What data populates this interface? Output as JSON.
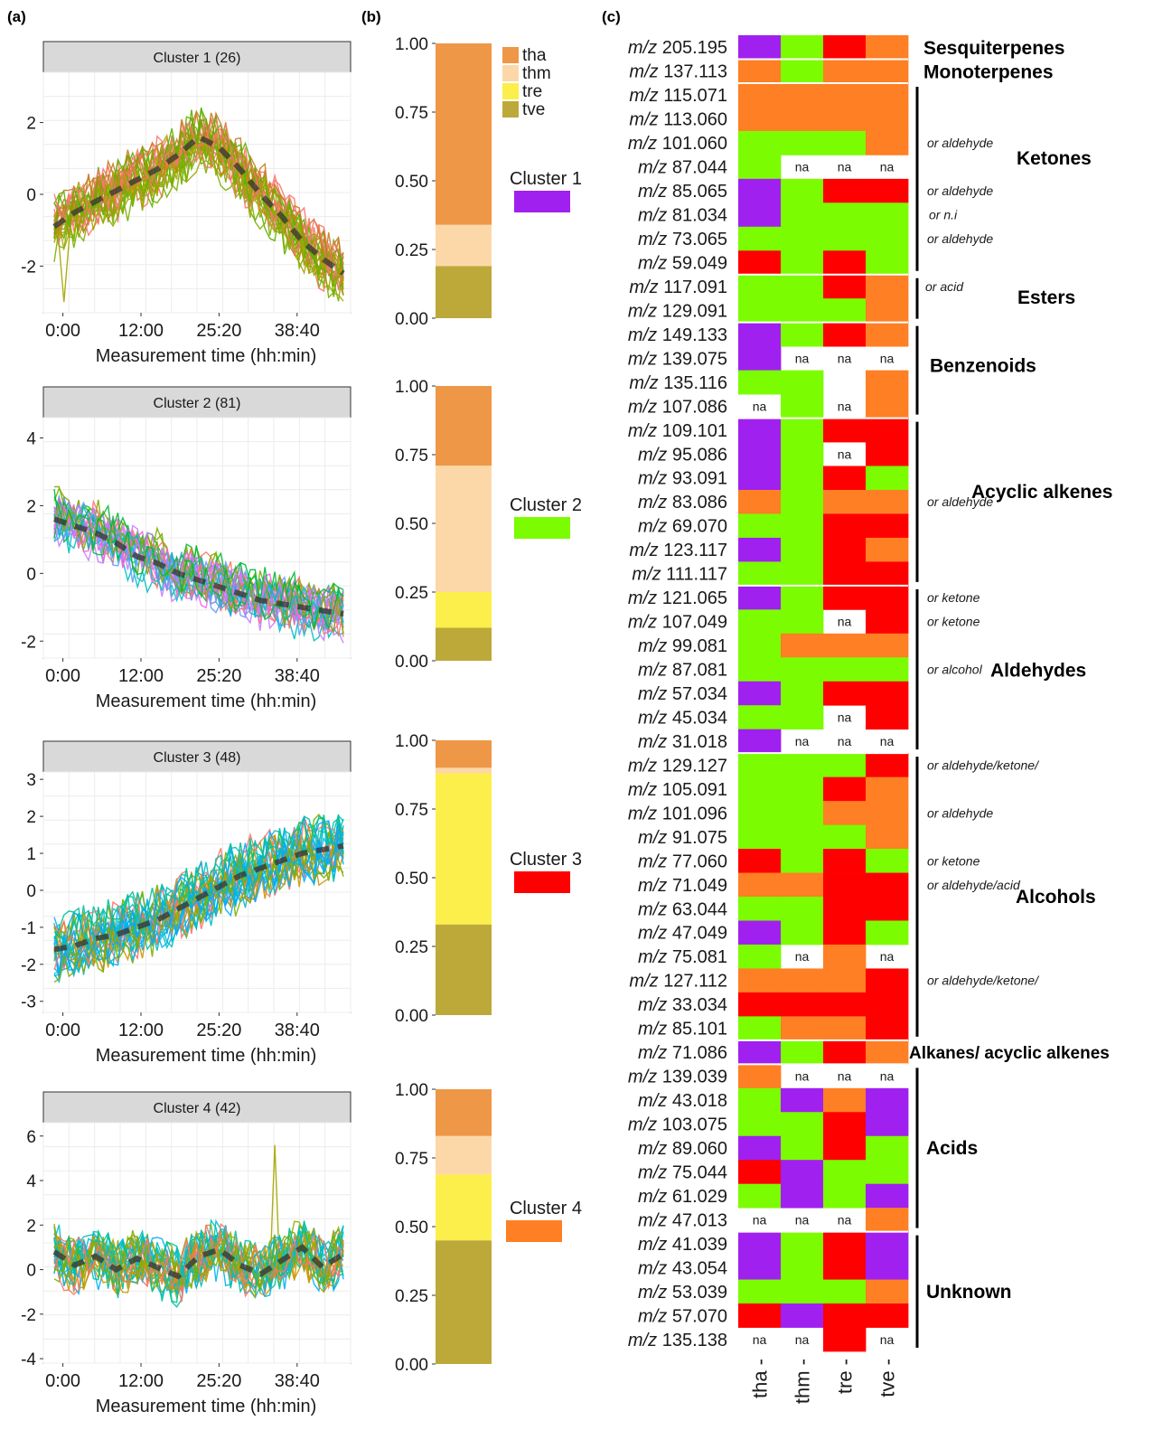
{
  "panel_labels": {
    "a": "(a)",
    "b": "(b)",
    "c": "(c)"
  },
  "chart_data": [
    {
      "panel": "a",
      "type": "line",
      "title": "Cluster 1 (26)",
      "xlabel": "Measurement time (hh:min)",
      "x_ticks": [
        "0:00",
        "12:00",
        "25:20",
        "38:40"
      ],
      "ylim": [
        -3.3,
        3.4
      ],
      "y_ticks": [
        2,
        0,
        -2
      ],
      "series_colors": [
        "#f8766d",
        "#7cae00",
        "#a3a500",
        "#c77c1e",
        "#5bb300"
      ],
      "mean_profile": [
        -0.9,
        -0.5,
        -0.2,
        0.1,
        0.4,
        0.7,
        1.1,
        1.6,
        1.3,
        0.7,
        0.0,
        -0.6,
        -1.3,
        -1.8,
        -2.2
      ]
    },
    {
      "panel": "a",
      "type": "line",
      "title": "Cluster 2 (81)",
      "xlabel": "Measurement time (hh:min)",
      "x_ticks": [
        "0:00",
        "12:00",
        "25:20",
        "38:40"
      ],
      "ylim": [
        -2.5,
        4.6
      ],
      "y_ticks": [
        4,
        2,
        0,
        -2
      ],
      "series_colors": [
        "#f564e3",
        "#c77cff",
        "#00bfc4",
        "#7cae00",
        "#00ba38",
        "#f8766d",
        "#619cff"
      ],
      "mean_profile": [
        1.6,
        1.4,
        1.2,
        0.9,
        0.5,
        0.3,
        0.0,
        -0.2,
        -0.4,
        -0.6,
        -0.8,
        -0.9,
        -1.0,
        -1.1,
        -1.2
      ]
    },
    {
      "panel": "a",
      "type": "line",
      "title": "Cluster 3 (48)",
      "xlabel": "Measurement time (hh:min)",
      "x_ticks": [
        "0:00",
        "12:00",
        "25:20",
        "38:40"
      ],
      "ylim": [
        -3.3,
        3.2
      ],
      "y_ticks": [
        3,
        2,
        1,
        0,
        -1,
        -2,
        -3
      ],
      "series_colors": [
        "#00bfc4",
        "#cd9600",
        "#00b0f6",
        "#00a9ff",
        "#7cae00",
        "#f8766d",
        "#00c19a"
      ],
      "mean_profile": [
        -1.6,
        -1.5,
        -1.3,
        -1.2,
        -1.0,
        -0.8,
        -0.5,
        -0.2,
        0.1,
        0.4,
        0.6,
        0.8,
        1.0,
        1.1,
        1.2
      ]
    },
    {
      "panel": "a",
      "type": "line",
      "title": "Cluster 4 (42)",
      "xlabel": "Measurement time (hh:min)",
      "x_ticks": [
        "0:00",
        "12:00",
        "25:20",
        "38:40"
      ],
      "ylim": [
        -4.2,
        6.6
      ],
      "y_ticks": [
        6,
        4,
        2,
        0,
        -2,
        -4
      ],
      "series_colors": [
        "#00bfc4",
        "#7cae00",
        "#00c19a",
        "#a3a500",
        "#f8766d",
        "#00b0f6",
        "#cd9600"
      ],
      "mean_profile": [
        0.8,
        0.2,
        0.6,
        0.0,
        0.5,
        0.1,
        -0.3,
        0.6,
        0.9,
        0.2,
        -0.2,
        0.4,
        1.0,
        0.1,
        0.7
      ]
    },
    {
      "panel": "b",
      "type": "bar",
      "y_ticks": [
        "1.00",
        "0.75",
        "0.50",
        "0.25",
        "0.00"
      ],
      "legend": [
        {
          "name": "tha",
          "color": "#ee9747"
        },
        {
          "name": "thm",
          "color": "#fcd8a8"
        },
        {
          "name": "tre",
          "color": "#fcee4b"
        },
        {
          "name": "tve",
          "color": "#bca93a"
        }
      ],
      "bars": [
        {
          "label": "Cluster 1",
          "color": "#a020f0",
          "tha": 0.66,
          "thm": 0.15,
          "tre": 0.0,
          "tve": 0.19
        },
        {
          "label": "Cluster 2",
          "color": "#7cfc00",
          "tha": 0.29,
          "thm": 0.46,
          "tre": 0.13,
          "tve": 0.12
        },
        {
          "label": "Cluster 3",
          "color": "#ff0000",
          "tha": 0.1,
          "thm": 0.02,
          "tre": 0.55,
          "tve": 0.33
        },
        {
          "label": "Cluster 4",
          "color": "#ff7f24",
          "tha": 0.17,
          "thm": 0.14,
          "tre": 0.24,
          "tve": 0.45
        }
      ]
    },
    {
      "panel": "c",
      "type": "heatmap",
      "x_labels": [
        "tha -",
        "thm -",
        "tre -",
        "tve -"
      ],
      "na_label": "na",
      "mz_prefix": "m/z",
      "cluster_colors": {
        "1": "#a020f0",
        "2": "#7cfc00",
        "3": "#ff0000",
        "4": "#ff7f24"
      },
      "rows": [
        {
          "mz": "205.195",
          "cells": [
            1,
            2,
            3,
            4
          ]
        },
        {
          "mz": "137.113",
          "cells": [
            4,
            2,
            4,
            4
          ]
        },
        {
          "mz": "115.071",
          "cells": [
            4,
            4,
            4,
            4
          ]
        },
        {
          "mz": "113.060",
          "cells": [
            4,
            4,
            4,
            4
          ]
        },
        {
          "mz": "101.060",
          "cells": [
            2,
            2,
            2,
            4
          ]
        },
        {
          "mz": "87.044",
          "cells": [
            2,
            0,
            0,
            0
          ]
        },
        {
          "mz": "85.065",
          "cells": [
            1,
            2,
            3,
            3
          ]
        },
        {
          "mz": "81.034",
          "cells": [
            1,
            2,
            2,
            2
          ]
        },
        {
          "mz": "73.065",
          "cells": [
            2,
            2,
            2,
            2
          ]
        },
        {
          "mz": "59.049",
          "cells": [
            3,
            2,
            3,
            2
          ]
        },
        {
          "mz": "117.091",
          "cells": [
            2,
            2,
            3,
            4
          ]
        },
        {
          "mz": "129.091",
          "cells": [
            2,
            2,
            2,
            4
          ]
        },
        {
          "mz": "149.133",
          "cells": [
            1,
            2,
            3,
            4
          ]
        },
        {
          "mz": "139.075",
          "cells": [
            1,
            0,
            0,
            0
          ]
        },
        {
          "mz": "135.116",
          "cells": [
            2,
            2,
            5,
            4
          ]
        },
        {
          "mz": "107.086",
          "cells": [
            0,
            2,
            0,
            4
          ]
        },
        {
          "mz": "109.101",
          "cells": [
            1,
            2,
            3,
            3
          ]
        },
        {
          "mz": "95.086",
          "cells": [
            1,
            2,
            0,
            3
          ]
        },
        {
          "mz": "93.091",
          "cells": [
            1,
            2,
            3,
            2
          ]
        },
        {
          "mz": "83.086",
          "cells": [
            4,
            2,
            4,
            4
          ]
        },
        {
          "mz": "69.070",
          "cells": [
            2,
            2,
            3,
            3
          ]
        },
        {
          "mz": "123.117",
          "cells": [
            1,
            2,
            3,
            4
          ]
        },
        {
          "mz": "111.117",
          "cells": [
            2,
            2,
            3,
            3
          ]
        },
        {
          "mz": "121.065",
          "cells": [
            1,
            2,
            3,
            3
          ]
        },
        {
          "mz": "107.049",
          "cells": [
            2,
            2,
            0,
            3
          ]
        },
        {
          "mz": "99.081",
          "cells": [
            2,
            4,
            4,
            4
          ]
        },
        {
          "mz": "87.081",
          "cells": [
            2,
            2,
            2,
            2
          ]
        },
        {
          "mz": "57.034",
          "cells": [
            1,
            2,
            3,
            3
          ]
        },
        {
          "mz": "45.034",
          "cells": [
            2,
            2,
            0,
            3
          ]
        },
        {
          "mz": "31.018",
          "cells": [
            1,
            0,
            0,
            0
          ]
        },
        {
          "mz": "129.127",
          "cells": [
            2,
            2,
            2,
            3
          ]
        },
        {
          "mz": "105.091",
          "cells": [
            2,
            2,
            3,
            4
          ]
        },
        {
          "mz": "101.096",
          "cells": [
            2,
            2,
            4,
            4
          ]
        },
        {
          "mz": "91.075",
          "cells": [
            2,
            2,
            2,
            4
          ]
        },
        {
          "mz": "77.060",
          "cells": [
            3,
            2,
            3,
            2
          ]
        },
        {
          "mz": "71.049",
          "cells": [
            4,
            4,
            3,
            3
          ]
        },
        {
          "mz": "63.044",
          "cells": [
            2,
            2,
            3,
            3
          ]
        },
        {
          "mz": "47.049",
          "cells": [
            1,
            2,
            3,
            2
          ]
        },
        {
          "mz": "75.081",
          "cells": [
            2,
            0,
            4,
            0
          ]
        },
        {
          "mz": "127.112",
          "cells": [
            4,
            4,
            4,
            3
          ]
        },
        {
          "mz": "33.034",
          "cells": [
            3,
            3,
            3,
            3
          ]
        },
        {
          "mz": "85.101",
          "cells": [
            2,
            4,
            4,
            3
          ]
        },
        {
          "mz": "71.086",
          "cells": [
            1,
            2,
            3,
            4
          ]
        },
        {
          "mz": "139.039",
          "cells": [
            4,
            0,
            0,
            0
          ]
        },
        {
          "mz": "43.018",
          "cells": [
            2,
            1,
            4,
            1
          ]
        },
        {
          "mz": "103.075",
          "cells": [
            2,
            2,
            3,
            1
          ]
        },
        {
          "mz": "89.060",
          "cells": [
            1,
            2,
            3,
            2
          ]
        },
        {
          "mz": "75.044",
          "cells": [
            3,
            1,
            2,
            2
          ]
        },
        {
          "mz": "61.029",
          "cells": [
            2,
            1,
            2,
            1
          ]
        },
        {
          "mz": "47.013",
          "cells": [
            0,
            0,
            0,
            4
          ]
        },
        {
          "mz": "41.039",
          "cells": [
            1,
            2,
            3,
            1
          ]
        },
        {
          "mz": "43.054",
          "cells": [
            1,
            2,
            3,
            1
          ]
        },
        {
          "mz": "53.039",
          "cells": [
            2,
            2,
            2,
            4
          ]
        },
        {
          "mz": "57.070",
          "cells": [
            3,
            1,
            3,
            3
          ]
        },
        {
          "mz": "135.138",
          "cells": [
            0,
            0,
            3,
            0
          ]
        }
      ],
      "groups": [
        {
          "name": "Sesquiterpenes",
          "start": 0,
          "end": 0
        },
        {
          "name": "Monoterpenes",
          "start": 1,
          "end": 1
        },
        {
          "name": "Ketones",
          "start": 2,
          "end": 9
        },
        {
          "name": "Esters",
          "start": 10,
          "end": 11
        },
        {
          "name": "Benzenoids",
          "start": 12,
          "end": 15
        },
        {
          "name": "Acyclic alkenes",
          "start": 16,
          "end": 22
        },
        {
          "name": "Aldehydes",
          "start": 23,
          "end": 29
        },
        {
          "name": "Alcohols",
          "start": 30,
          "end": 41
        },
        {
          "name": "Alkanes/ acyclic alkenes",
          "start": 42,
          "end": 42
        },
        {
          "name": "Acids",
          "start": 43,
          "end": 49
        },
        {
          "name": "Unknown",
          "start": 50,
          "end": 54
        }
      ],
      "notes": [
        {
          "row": 4,
          "text": "or aldehyde"
        },
        {
          "row": 6,
          "text": "or aldehyde"
        },
        {
          "row": 7,
          "text": "or n.i"
        },
        {
          "row": 8,
          "text": "or aldehyde"
        },
        {
          "row": 10,
          "text": "or acid"
        },
        {
          "row": 19,
          "text": "or aldehyde"
        },
        {
          "row": 23,
          "text": "or ketone"
        },
        {
          "row": 24,
          "text": "or ketone"
        },
        {
          "row": 26,
          "text": "or alcohol"
        },
        {
          "row": 30,
          "text": "or aldehyde/ketone/"
        },
        {
          "row": 32,
          "text": "or aldehyde"
        },
        {
          "row": 34,
          "text": "or ketone"
        },
        {
          "row": 35,
          "text": "or aldehyde/acid"
        },
        {
          "row": 39,
          "text": "or aldehyde/ketone/"
        }
      ]
    }
  ]
}
